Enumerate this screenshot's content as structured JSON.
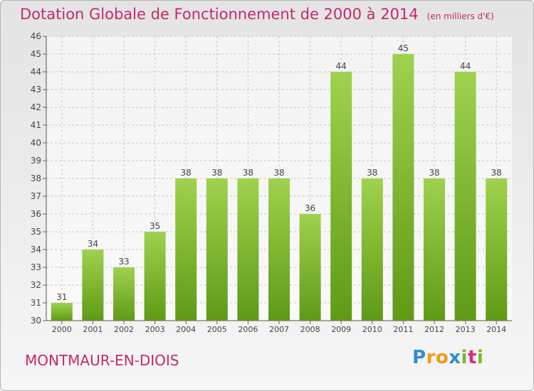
{
  "chart_data": {
    "type": "bar",
    "title": "Dotation Globale de Fonctionnement de 2000 à 2014",
    "subtitle": "(en milliers d'€)",
    "categories": [
      "2000",
      "2001",
      "2002",
      "2003",
      "2004",
      "2005",
      "2006",
      "2007",
      "2008",
      "2009",
      "2010",
      "2011",
      "2012",
      "2013",
      "2014"
    ],
    "values": [
      31,
      34,
      33,
      35,
      38,
      38,
      38,
      38,
      36,
      44,
      38,
      45,
      38,
      44,
      38
    ],
    "ylim": [
      30,
      46
    ],
    "yticks": [
      30,
      31,
      32,
      33,
      34,
      35,
      36,
      37,
      38,
      39,
      40,
      41,
      42,
      43,
      44,
      45,
      46
    ],
    "grid": true,
    "bar_color": "#7ab82c"
  },
  "commune": "MONTMAUR-EN-DIOIS",
  "logo": {
    "letters": [
      "P",
      "r",
      "o",
      "x",
      "i",
      "t",
      "i"
    ],
    "colors": [
      "#2d8fd1",
      "#f29a17",
      "#f29a17",
      "#2d8fd1",
      "#7ab82c",
      "#e0287a",
      "#7ab82c"
    ]
  }
}
